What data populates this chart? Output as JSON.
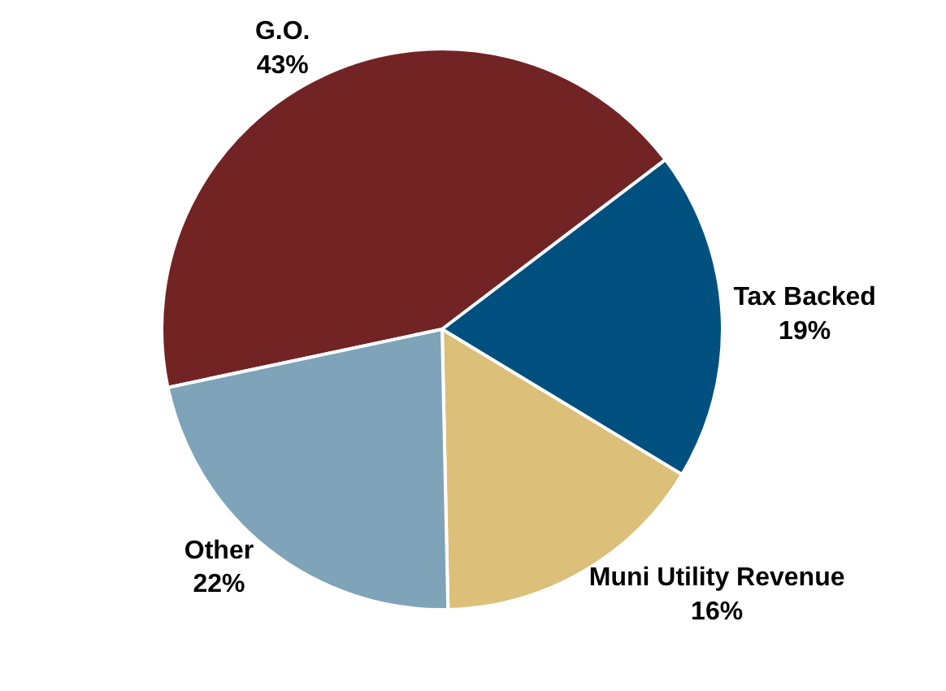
{
  "chart_data": {
    "type": "pie",
    "categories": [
      "G.O.",
      "Tax Backed",
      "Muni Utility Revenue",
      "Other"
    ],
    "values": [
      43,
      19,
      16,
      22
    ],
    "value_labels": [
      "43%",
      "19%",
      "16%",
      "22%"
    ],
    "colors": [
      "#722424",
      "#00507f",
      "#dcbf78",
      "#7fa3b8"
    ],
    "legend": false
  }
}
